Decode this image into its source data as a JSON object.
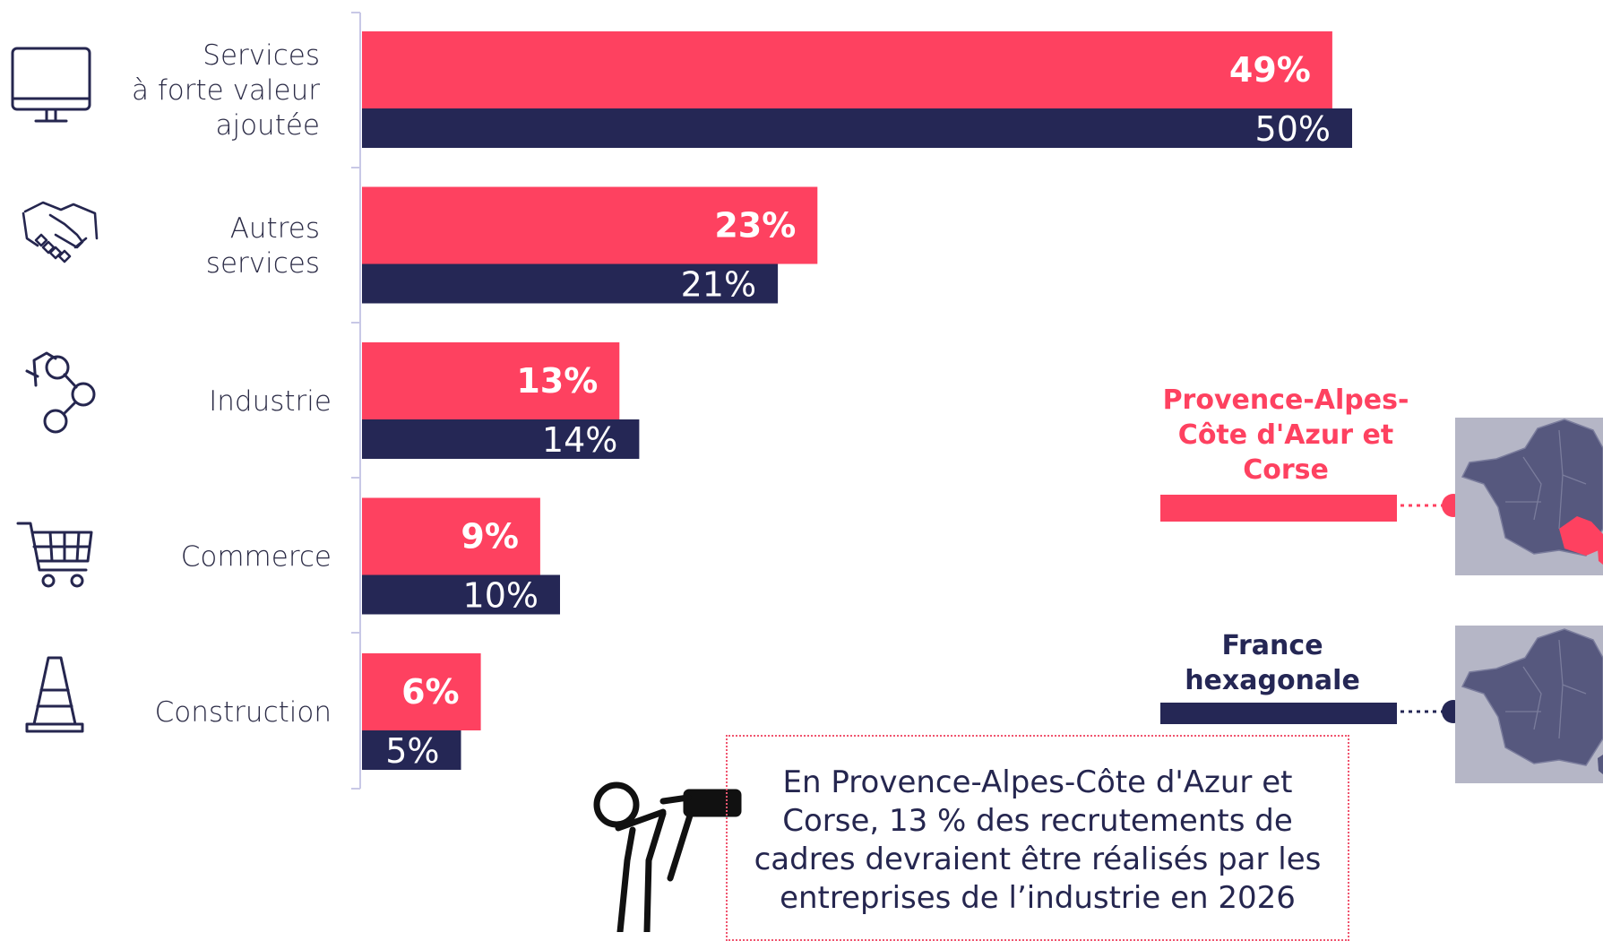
{
  "colors": {
    "pink": "#fe4160",
    "navy": "#252755",
    "map_bg": "#b5b6c6",
    "map_fill": "#56587e"
  },
  "chart_data": {
    "type": "bar",
    "orientation": "horizontal",
    "categories": [
      "Services à forte valeur ajoutée",
      "Autres services",
      "Industrie",
      "Commerce",
      "Construction"
    ],
    "category_lines": [
      [
        "Services",
        "à forte valeur",
        "ajoutée"
      ],
      [
        "Autres",
        "services"
      ],
      [
        "Industrie"
      ],
      [
        "Commerce"
      ],
      [
        "Construction"
      ]
    ],
    "category_icons": [
      "computer-monitor-icon",
      "handshake-icon",
      "robot-arm-icon",
      "shopping-cart-icon",
      "traffic-cone-icon"
    ],
    "series": [
      {
        "name": "Provence-Alpes-Côte d'Azur et Corse",
        "color": "#fe4160",
        "values": [
          49,
          23,
          13,
          9,
          6
        ],
        "labels": [
          "49%",
          "23%",
          "13%",
          "9%",
          "6%"
        ]
      },
      {
        "name": "France hexagonale",
        "color": "#252755",
        "values": [
          50,
          21,
          14,
          10,
          5
        ],
        "labels": [
          "50%",
          "21%",
          "14%",
          "10%",
          "5%"
        ]
      }
    ],
    "xlim": [
      0,
      55
    ],
    "grid": false,
    "legend": "right"
  },
  "legend": [
    {
      "title_lines": [
        "Provence-Alpes-",
        "Côte d'Azur et",
        "Corse"
      ],
      "icon": "france-map-paca-icon"
    },
    {
      "title_lines": [
        "France",
        "hexagonale"
      ],
      "icon": "france-map-icon"
    }
  ],
  "callout": {
    "icon": "person-telescope-icon",
    "text": "En Provence-Alpes-Côte d'Azur et Corse, 13 % des recrutements de cadres devraient être réalisés par les entreprises de l’industrie en 2026"
  }
}
